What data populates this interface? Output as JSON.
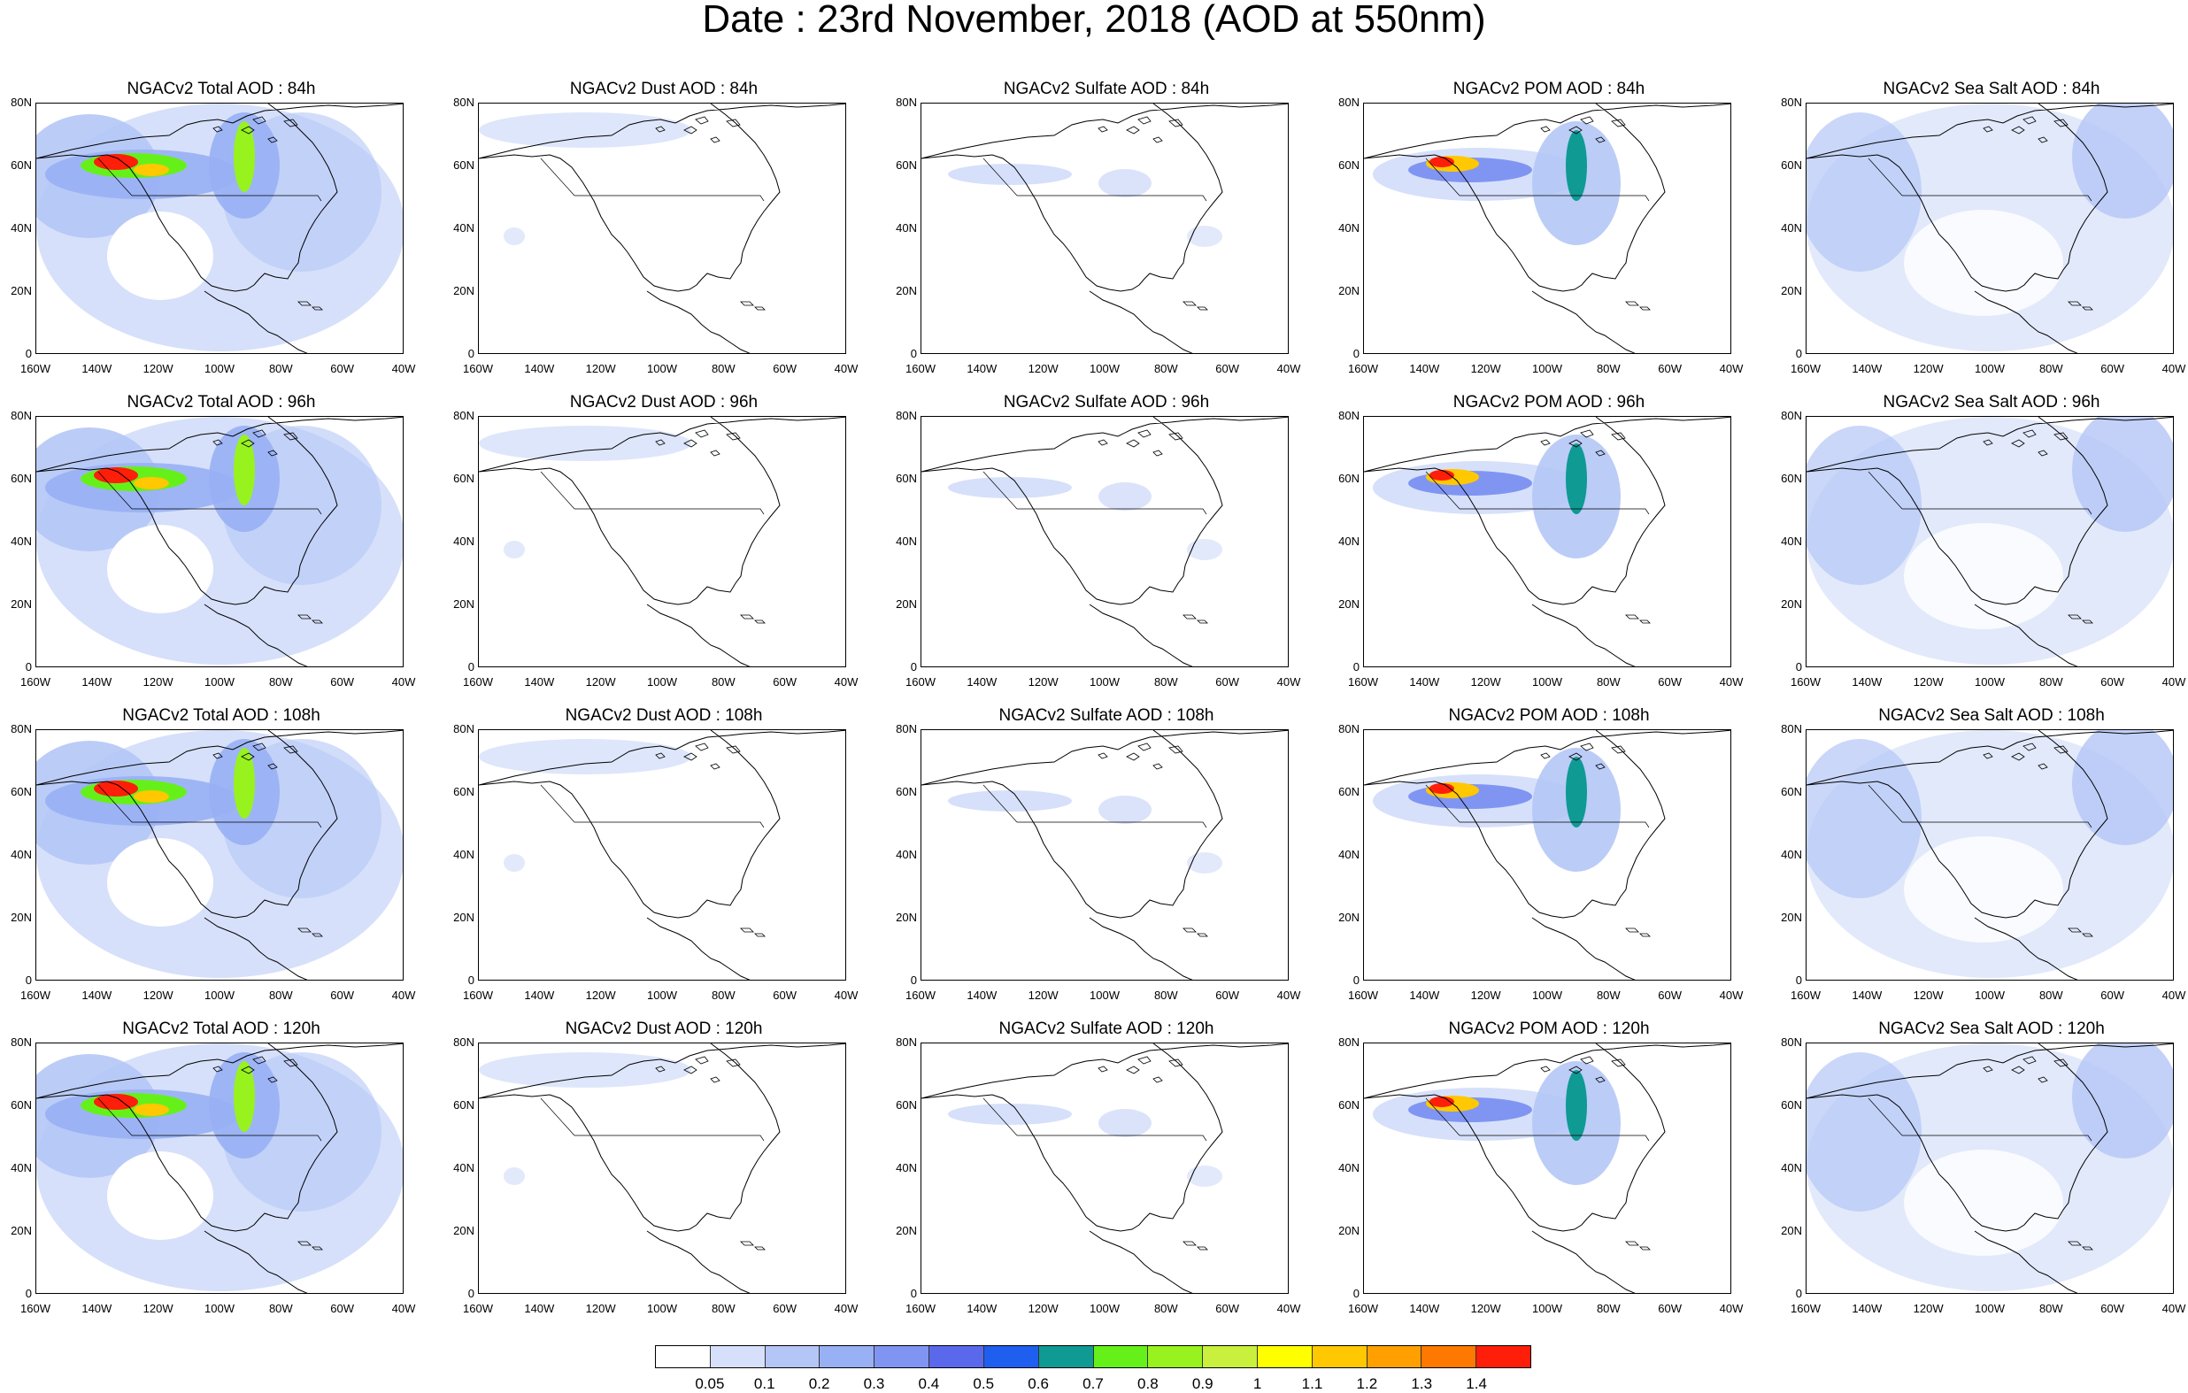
{
  "title": "Date : 23rd November, 2018 (AOD at 550nm)",
  "lat_ticks": [
    "80N",
    "60N",
    "40N",
    "20N",
    "0"
  ],
  "lon_ticks": [
    "160W",
    "140W",
    "120W",
    "100W",
    "80W",
    "60W",
    "40W"
  ],
  "colorbar": {
    "labels": [
      "0.05",
      "0.1",
      "0.2",
      "0.3",
      "0.4",
      "0.5",
      "0.6",
      "0.7",
      "0.8",
      "0.9",
      "1",
      "1.1",
      "1.2",
      "1.3",
      "1.4"
    ],
    "colors": [
      "#ffffff",
      "#d6e0fa",
      "#b4c6f6",
      "#98b0f4",
      "#8095f2",
      "#5a69ec",
      "#1e5ff0",
      "#0f9a94",
      "#66f019",
      "#98f21e",
      "#c8f03c",
      "#ffff00",
      "#ffc800",
      "#ffa000",
      "#ff7800",
      "#ff1e0a"
    ]
  },
  "panels": [
    {
      "title": "NGACv2 Total AOD : 84h",
      "species": "total",
      "hour": 84
    },
    {
      "title": "NGACv2 Dust AOD : 84h",
      "species": "dust",
      "hour": 84
    },
    {
      "title": "NGACv2 Sulfate AOD : 84h",
      "species": "sulfate",
      "hour": 84
    },
    {
      "title": "NGACv2 POM AOD : 84h",
      "species": "pom",
      "hour": 84
    },
    {
      "title": "NGACv2 Sea Salt AOD : 84h",
      "species": "seasalt",
      "hour": 84
    },
    {
      "title": "NGACv2 Total AOD : 96h",
      "species": "total",
      "hour": 96
    },
    {
      "title": "NGACv2 Dust AOD : 96h",
      "species": "dust",
      "hour": 96
    },
    {
      "title": "NGACv2 Sulfate AOD : 96h",
      "species": "sulfate",
      "hour": 96
    },
    {
      "title": "NGACv2 POM AOD : 96h",
      "species": "pom",
      "hour": 96
    },
    {
      "title": "NGACv2 Sea Salt AOD : 96h",
      "species": "seasalt",
      "hour": 96
    },
    {
      "title": "NGACv2 Total AOD : 108h",
      "species": "total",
      "hour": 108
    },
    {
      "title": "NGACv2 Dust AOD : 108h",
      "species": "dust",
      "hour": 108
    },
    {
      "title": "NGACv2 Sulfate AOD : 108h",
      "species": "sulfate",
      "hour": 108
    },
    {
      "title": "NGACv2 POM AOD : 108h",
      "species": "pom",
      "hour": 108
    },
    {
      "title": "NGACv2 Sea Salt AOD : 108h",
      "species": "seasalt",
      "hour": 108
    },
    {
      "title": "NGACv2 Total AOD : 120h",
      "species": "total",
      "hour": 120
    },
    {
      "title": "NGACv2 Dust AOD : 120h",
      "species": "dust",
      "hour": 120
    },
    {
      "title": "NGACv2 Sulfate AOD : 120h",
      "species": "sulfate",
      "hour": 120
    },
    {
      "title": "NGACv2 POM AOD : 120h",
      "species": "pom",
      "hour": 120
    },
    {
      "title": "NGACv2 Sea Salt  AOD : 120h",
      "species": "seasalt",
      "hour": 120
    }
  ]
}
